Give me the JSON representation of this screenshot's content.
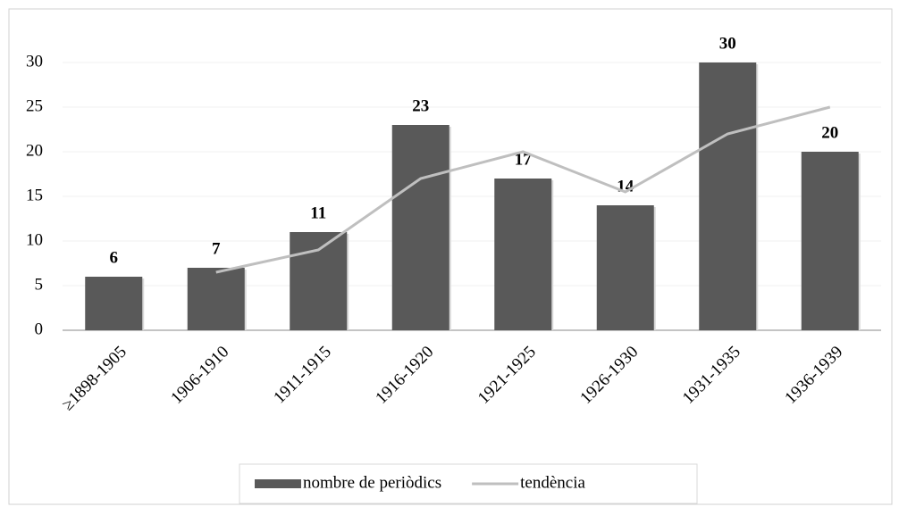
{
  "chart_data": {
    "type": "bar",
    "categories": [
      "≥1898-1905",
      "1906-1910",
      "1911-1915",
      "1916-1920",
      "1921-1925",
      "1926-1930",
      "1931-1935",
      "1936-1939"
    ],
    "series": [
      {
        "name": "nombre de periòdics",
        "type": "bar",
        "color": "#595959",
        "values": [
          6,
          7,
          11,
          23,
          17,
          14,
          30,
          20
        ]
      },
      {
        "name": "tendència",
        "type": "line",
        "color": "#bfbfbf",
        "values": [
          null,
          6.5,
          9,
          17,
          20,
          15.5,
          22,
          25
        ]
      }
    ],
    "ylim": [
      0,
      30
    ],
    "yticks": [
      0,
      5,
      10,
      15,
      20,
      25,
      30
    ],
    "grid": true,
    "legend": "bottom"
  }
}
